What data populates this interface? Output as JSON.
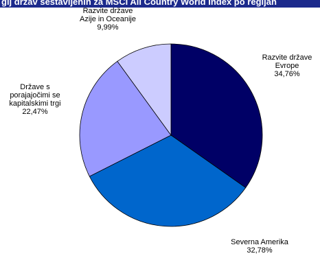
{
  "header": {
    "title": "gij držav sestavljenih za MSCI All Country World Index po regijah"
  },
  "chart_data": {
    "type": "pie",
    "title": "gij držav sestavljenih za MSCI All Country World Index po regijah",
    "slices": [
      {
        "name": "Razvite države Evrope",
        "label_lines": [
          "Razvite države",
          "Evrope"
        ],
        "value": 34.76,
        "value_label": "34,76%",
        "color": "#000066"
      },
      {
        "name": "Severna Amerika",
        "label_lines": [
          "Severna Amerika"
        ],
        "value": 32.78,
        "value_label": "32,78%",
        "color": "#0066cc"
      },
      {
        "name": "Države s porajajočimi se kapitalskimi trgi",
        "label_lines": [
          "Države s",
          "porajajočimi se",
          "kapitalskimi trgi"
        ],
        "value": 22.47,
        "value_label": "22,47%",
        "color": "#9999ff"
      },
      {
        "name": "Razvite države Azije in Oceanije",
        "label_lines": [
          "Razvite države",
          "Azije in Oceanije"
        ],
        "value": 9.99,
        "value_label": "9,99%",
        "color": "#ccccff"
      }
    ],
    "start_angle_deg": 0,
    "direction": "clockwise",
    "legend": "none"
  }
}
